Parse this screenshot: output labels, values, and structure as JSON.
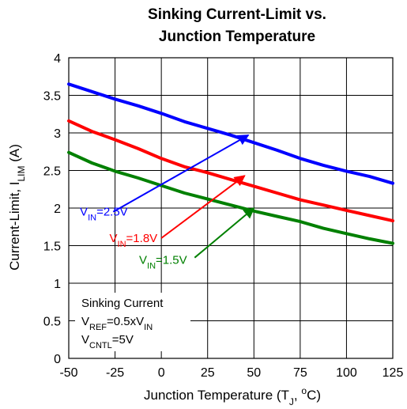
{
  "chart_data": {
    "type": "line",
    "title": [
      "Sinking Current-Limit vs.",
      "Junction Temperature"
    ],
    "xlabel": "Junction Temperature (T_J, °C)",
    "xlabel_parts": {
      "main": "Junction Temperature (T",
      "sub": "J",
      "mid": ", ",
      "sup": "o",
      "end": "C)"
    },
    "ylabel": "Current-Limit, I_LIM (A)",
    "ylabel_parts": {
      "main": "Current-Limit, I",
      "sub": "LIM",
      "end": " (A)"
    },
    "xlim": [
      -50,
      125
    ],
    "ylim": [
      0,
      4
    ],
    "xticks": [
      -50,
      -25,
      0,
      25,
      50,
      75,
      100,
      125
    ],
    "yticks": [
      0,
      0.5,
      1,
      1.5,
      2,
      2.5,
      3,
      3.5,
      4
    ],
    "ytick_labels": [
      "0",
      "0.5",
      "1",
      "1.5",
      "2",
      "2.5",
      "3",
      "3.5",
      "4"
    ],
    "grid": true,
    "x": [
      -50,
      -37.5,
      -25,
      -12.5,
      0,
      12.5,
      25,
      37.5,
      50,
      62.5,
      75,
      87.5,
      100,
      112.5,
      125
    ],
    "series": [
      {
        "name": "V_IN=2.5V",
        "color": "#0000ff",
        "values": [
          3.65,
          3.55,
          3.45,
          3.36,
          3.26,
          3.15,
          3.06,
          2.97,
          2.87,
          2.77,
          2.66,
          2.57,
          2.49,
          2.42,
          2.33
        ]
      },
      {
        "name": "V_IN=1.8V",
        "color": "#ff0000",
        "values": [
          3.16,
          3.02,
          2.91,
          2.79,
          2.66,
          2.55,
          2.47,
          2.38,
          2.29,
          2.2,
          2.11,
          2.04,
          1.97,
          1.9,
          1.83
        ]
      },
      {
        "name": "V_IN=1.5V",
        "color": "#008000",
        "values": [
          2.74,
          2.6,
          2.49,
          2.4,
          2.3,
          2.2,
          2.12,
          2.04,
          1.96,
          1.89,
          1.82,
          1.73,
          1.66,
          1.59,
          1.53
        ]
      }
    ],
    "annotations": [
      {
        "series": 0,
        "pre": "V",
        "sub": "IN",
        "post": "=2.5V",
        "text_x": -44,
        "text_y": 1.9,
        "line_from": [
          -26,
          1.95
        ],
        "arrow_to": [
          47,
          2.97
        ]
      },
      {
        "series": 1,
        "pre": "V",
        "sub": "IN",
        "post": "=1.8V",
        "text_x": -28,
        "text_y": 1.55,
        "line_from": [
          0,
          1.6
        ],
        "arrow_to": [
          45,
          2.43
        ]
      },
      {
        "series": 2,
        "pre": "V",
        "sub": "IN",
        "post": "=1.5V",
        "text_x": -12,
        "text_y": 1.26,
        "line_from": [
          18,
          1.34
        ],
        "arrow_to": [
          50,
          2.0
        ]
      }
    ],
    "note": {
      "line1": "Sinking Current",
      "line2": {
        "pre": "V",
        "sub": "REF",
        "mid": "=0.5xV",
        "sub2": "IN"
      },
      "line3": {
        "pre": "V",
        "sub": "CNTL",
        "post": "=5V"
      }
    }
  }
}
